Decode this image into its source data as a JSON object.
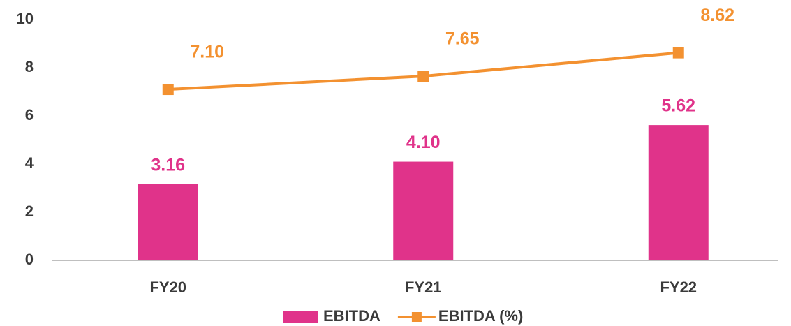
{
  "chart_data": {
    "type": "bar",
    "categories": [
      "FY20",
      "FY21",
      "FY22"
    ],
    "series": [
      {
        "name": "EBITDA",
        "type": "bar",
        "color": "#e0338a",
        "values": [
          3.16,
          4.1,
          5.62
        ],
        "value_labels": [
          "3.16",
          "4.10",
          "5.62"
        ]
      },
      {
        "name": "EBITDA (%)",
        "type": "line",
        "color": "#f39130",
        "values": [
          7.1,
          7.65,
          8.62
        ],
        "value_labels": [
          "7.10",
          "7.65",
          "8.62"
        ]
      }
    ],
    "ylim": [
      0,
      10
    ],
    "yticks": [
      0,
      2,
      4,
      6,
      8,
      10
    ],
    "grid": false,
    "legend": "bottom"
  }
}
